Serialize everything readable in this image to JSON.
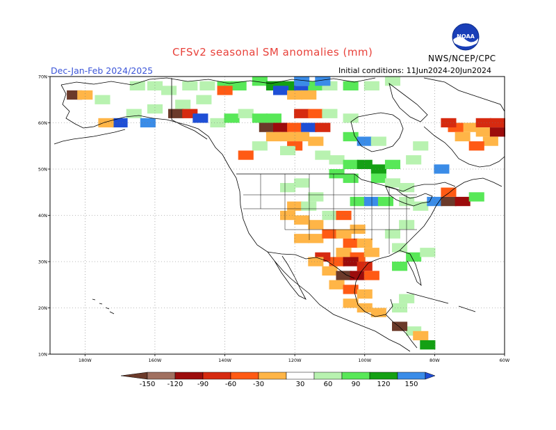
{
  "title": "CFSv2 seasonal SM anomalies (mm)",
  "season": "Dec-Jan-Feb 2024/2025",
  "initial_conditions": "Initial conditions: 11Jun2024-20Jun2024",
  "organization": "NWS/NCEP/CPC",
  "logo_text": "NOAA",
  "map": {
    "projection": "equirectangular",
    "lon_range": [
      -190,
      -60
    ],
    "lat_range": [
      10,
      70
    ],
    "lat_ticks": [
      {
        "value": 70,
        "label": "70N"
      },
      {
        "value": 60,
        "label": "60N"
      },
      {
        "value": 50,
        "label": "50N"
      },
      {
        "value": 40,
        "label": "40N"
      },
      {
        "value": 30,
        "label": "30N"
      },
      {
        "value": 20,
        "label": "20N"
      },
      {
        "value": 10,
        "label": "10N"
      }
    ],
    "lon_ticks": [
      {
        "value": -180,
        "label": "180W"
      },
      {
        "value": -160,
        "label": "160W"
      },
      {
        "value": -140,
        "label": "140W"
      },
      {
        "value": -120,
        "label": "120W"
      },
      {
        "value": -100,
        "label": "100W"
      },
      {
        "value": -80,
        "label": "80W"
      },
      {
        "value": -60,
        "label": "60W"
      }
    ],
    "grid": "dotted"
  },
  "colorbar": {
    "labels": [
      "-150",
      "-120",
      "-90",
      "-60",
      "-30",
      "30",
      "60",
      "90",
      "120",
      "150"
    ],
    "colors": [
      "#6b3a2a",
      "#a07060",
      "#9c0c0c",
      "#d62a10",
      "#ff5a14",
      "#ffb547",
      "#ffffff",
      "#b8f2b0",
      "#58e858",
      "#14a014",
      "#3a8ce8",
      "#1f4fd6"
    ]
  },
  "chart_data": {
    "type": "heatmap",
    "title": "CFSv2 seasonal SM anomalies (mm)",
    "units": "mm",
    "cell_size_deg": 2,
    "categories": {
      "lt_-150": "#6b3a2a",
      "-150_-120": "#a07060",
      "-120_-90": "#9c0c0c",
      "-90_-60": "#d62a10",
      "-60_-30": "#ff5a14",
      "-30_0": "#ffb547",
      "30_60": "#b8f2b0",
      "60_90": "#58e858",
      "90_120": "#14a014",
      "120_150": "#3a8ce8",
      "gt_150": "#1f4fd6"
    },
    "cells": [
      {
        "lon": -165,
        "lat": 68,
        "c": "30_60"
      },
      {
        "lon": -160,
        "lat": 68,
        "c": "30_60"
      },
      {
        "lon": -156,
        "lat": 67,
        "c": "30_60"
      },
      {
        "lon": -150,
        "lat": 68,
        "c": "30_60"
      },
      {
        "lon": -145,
        "lat": 68,
        "c": "30_60"
      },
      {
        "lon": -140,
        "lat": 68,
        "c": "60_90"
      },
      {
        "lon": -136,
        "lat": 68,
        "c": "60_90"
      },
      {
        "lon": -130,
        "lat": 69,
        "c": "60_90"
      },
      {
        "lon": -126,
        "lat": 68,
        "c": "90_120"
      },
      {
        "lon": -122,
        "lat": 68,
        "c": "90_120"
      },
      {
        "lon": -124,
        "lat": 67,
        "c": "gt_150"
      },
      {
        "lon": -118,
        "lat": 67,
        "c": "gt_150"
      },
      {
        "lon": -114,
        "lat": 68,
        "c": "60_90"
      },
      {
        "lon": -110,
        "lat": 68,
        "c": "30_60"
      },
      {
        "lon": -104,
        "lat": 68,
        "c": "60_90"
      },
      {
        "lon": -98,
        "lat": 68,
        "c": "30_60"
      },
      {
        "lon": -92,
        "lat": 69,
        "c": "30_60"
      },
      {
        "lon": -118,
        "lat": 69,
        "c": "120_150"
      },
      {
        "lon": -112,
        "lat": 69,
        "c": "120_150"
      },
      {
        "lon": -120,
        "lat": 66,
        "c": "-30_0"
      },
      {
        "lon": -116,
        "lat": 66,
        "c": "-30_0"
      },
      {
        "lon": -140,
        "lat": 67,
        "c": "-60_-30"
      },
      {
        "lon": -146,
        "lat": 65,
        "c": "30_60"
      },
      {
        "lon": -152,
        "lat": 64,
        "c": "30_60"
      },
      {
        "lon": -160,
        "lat": 63,
        "c": "30_60"
      },
      {
        "lon": -166,
        "lat": 62,
        "c": "30_60"
      },
      {
        "lon": -175,
        "lat": 65,
        "c": "30_60"
      },
      {
        "lon": -183,
        "lat": 66,
        "c": "lt_-150"
      },
      {
        "lon": -180,
        "lat": 66,
        "c": "-30_0"
      },
      {
        "lon": -154,
        "lat": 62,
        "c": "lt_-150"
      },
      {
        "lon": -150,
        "lat": 62,
        "c": "-90_-60"
      },
      {
        "lon": -147,
        "lat": 61,
        "c": "gt_150"
      },
      {
        "lon": -162,
        "lat": 60,
        "c": "120_150"
      },
      {
        "lon": -170,
        "lat": 60,
        "c": "gt_150"
      },
      {
        "lon": -174,
        "lat": 60,
        "c": "-30_0"
      },
      {
        "lon": -142,
        "lat": 60,
        "c": "30_60"
      },
      {
        "lon": -138,
        "lat": 61,
        "c": "60_90"
      },
      {
        "lon": -134,
        "lat": 62,
        "c": "30_60"
      },
      {
        "lon": -130,
        "lat": 61,
        "c": "60_90"
      },
      {
        "lon": -126,
        "lat": 61,
        "c": "60_90"
      },
      {
        "lon": -118,
        "lat": 62,
        "c": "-90_-60"
      },
      {
        "lon": -114,
        "lat": 62,
        "c": "-60_-30"
      },
      {
        "lon": -110,
        "lat": 62,
        "c": "30_60"
      },
      {
        "lon": -104,
        "lat": 61,
        "c": "30_60"
      },
      {
        "lon": -128,
        "lat": 59,
        "c": "lt_-150"
      },
      {
        "lon": -124,
        "lat": 59,
        "c": "-120_-90"
      },
      {
        "lon": -120,
        "lat": 59,
        "c": "-60_-30"
      },
      {
        "lon": -116,
        "lat": 59,
        "c": "gt_150"
      },
      {
        "lon": -112,
        "lat": 59,
        "c": "-90_-60"
      },
      {
        "lon": -122,
        "lat": 57,
        "c": "-30_0"
      },
      {
        "lon": -118,
        "lat": 57,
        "c": "-30_0"
      },
      {
        "lon": -114,
        "lat": 56,
        "c": "-30_0"
      },
      {
        "lon": -120,
        "lat": 55,
        "c": "-60_-30"
      },
      {
        "lon": -126,
        "lat": 57,
        "c": "-30_0"
      },
      {
        "lon": -130,
        "lat": 55,
        "c": "30_60"
      },
      {
        "lon": -134,
        "lat": 53,
        "c": "-60_-30"
      },
      {
        "lon": -122,
        "lat": 54,
        "c": "30_60"
      },
      {
        "lon": -104,
        "lat": 57,
        "c": "60_90"
      },
      {
        "lon": -100,
        "lat": 56,
        "c": "120_150"
      },
      {
        "lon": -96,
        "lat": 56,
        "c": "30_60"
      },
      {
        "lon": -112,
        "lat": 53,
        "c": "30_60"
      },
      {
        "lon": -108,
        "lat": 52,
        "c": "30_60"
      },
      {
        "lon": -104,
        "lat": 51,
        "c": "60_90"
      },
      {
        "lon": -100,
        "lat": 51,
        "c": "90_120"
      },
      {
        "lon": -96,
        "lat": 50,
        "c": "90_120"
      },
      {
        "lon": -92,
        "lat": 51,
        "c": "60_90"
      },
      {
        "lon": -108,
        "lat": 49,
        "c": "60_90"
      },
      {
        "lon": -104,
        "lat": 48,
        "c": "60_90"
      },
      {
        "lon": -96,
        "lat": 48,
        "c": "60_90"
      },
      {
        "lon": -92,
        "lat": 47,
        "c": "30_60"
      },
      {
        "lon": -88,
        "lat": 46,
        "c": "30_60"
      },
      {
        "lon": -86,
        "lat": 52,
        "c": "30_60"
      },
      {
        "lon": -84,
        "lat": 55,
        "c": "30_60"
      },
      {
        "lon": -78,
        "lat": 50,
        "c": "120_150"
      },
      {
        "lon": -70,
        "lat": 59,
        "c": "-30_0"
      },
      {
        "lon": -66,
        "lat": 60,
        "c": "-90_-60"
      },
      {
        "lon": -62,
        "lat": 60,
        "c": "-90_-60"
      },
      {
        "lon": -74,
        "lat": 59,
        "c": "-60_-30"
      },
      {
        "lon": -72,
        "lat": 57,
        "c": "-30_0"
      },
      {
        "lon": -66,
        "lat": 58,
        "c": "-30_0"
      },
      {
        "lon": -62,
        "lat": 58,
        "c": "-120_-90"
      },
      {
        "lon": -64,
        "lat": 56,
        "c": "-30_0"
      },
      {
        "lon": -68,
        "lat": 55,
        "c": "-60_-30"
      },
      {
        "lon": -76,
        "lat": 60,
        "c": "-90_-60"
      },
      {
        "lon": -122,
        "lat": 46,
        "c": "30_60"
      },
      {
        "lon": -118,
        "lat": 47,
        "c": "30_60"
      },
      {
        "lon": -114,
        "lat": 44,
        "c": "30_60"
      },
      {
        "lon": -120,
        "lat": 42,
        "c": "-30_0"
      },
      {
        "lon": -116,
        "lat": 42,
        "c": "30_60"
      },
      {
        "lon": -122,
        "lat": 40,
        "c": "-30_0"
      },
      {
        "lon": -118,
        "lat": 39,
        "c": "-30_0"
      },
      {
        "lon": -114,
        "lat": 38,
        "c": "-30_0"
      },
      {
        "lon": -110,
        "lat": 40,
        "c": "30_60"
      },
      {
        "lon": -106,
        "lat": 40,
        "c": "-60_-30"
      },
      {
        "lon": -102,
        "lat": 43,
        "c": "60_90"
      },
      {
        "lon": -98,
        "lat": 43,
        "c": "120_150"
      },
      {
        "lon": -94,
        "lat": 43,
        "c": "60_90"
      },
      {
        "lon": -88,
        "lat": 43,
        "c": "30_60"
      },
      {
        "lon": -84,
        "lat": 42,
        "c": "30_60"
      },
      {
        "lon": -80,
        "lat": 43,
        "c": "120_150"
      },
      {
        "lon": -76,
        "lat": 43,
        "c": "lt_-150"
      },
      {
        "lon": -72,
        "lat": 43,
        "c": "-120_-90"
      },
      {
        "lon": -68,
        "lat": 44,
        "c": "60_90"
      },
      {
        "lon": -76,
        "lat": 45,
        "c": "-60_-30"
      },
      {
        "lon": -118,
        "lat": 35,
        "c": "-30_0"
      },
      {
        "lon": -114,
        "lat": 35,
        "c": "-30_0"
      },
      {
        "lon": -110,
        "lat": 36,
        "c": "-60_-30"
      },
      {
        "lon": -106,
        "lat": 36,
        "c": "-30_0"
      },
      {
        "lon": -102,
        "lat": 37,
        "c": "-30_0"
      },
      {
        "lon": -104,
        "lat": 34,
        "c": "-60_-30"
      },
      {
        "lon": -100,
        "lat": 34,
        "c": "-30_0"
      },
      {
        "lon": -106,
        "lat": 32,
        "c": "-30_0"
      },
      {
        "lon": -102,
        "lat": 31,
        "c": "-60_-30"
      },
      {
        "lon": -98,
        "lat": 32,
        "c": "-30_0"
      },
      {
        "lon": -108,
        "lat": 30,
        "c": "-60_-30"
      },
      {
        "lon": -104,
        "lat": 30,
        "c": "-120_-90"
      },
      {
        "lon": -100,
        "lat": 29,
        "c": "-90_-60"
      },
      {
        "lon": -110,
        "lat": 28,
        "c": "-30_0"
      },
      {
        "lon": -106,
        "lat": 27,
        "c": "lt_-150"
      },
      {
        "lon": -102,
        "lat": 27,
        "c": "-120_-90"
      },
      {
        "lon": -98,
        "lat": 27,
        "c": "-60_-30"
      },
      {
        "lon": -108,
        "lat": 25,
        "c": "-30_0"
      },
      {
        "lon": -104,
        "lat": 24,
        "c": "-60_-30"
      },
      {
        "lon": -100,
        "lat": 23,
        "c": "-30_0"
      },
      {
        "lon": -104,
        "lat": 21,
        "c": "-30_0"
      },
      {
        "lon": -100,
        "lat": 20,
        "c": "-30_0"
      },
      {
        "lon": -96,
        "lat": 19,
        "c": "-30_0"
      },
      {
        "lon": -112,
        "lat": 31,
        "c": "-90_-60"
      },
      {
        "lon": -114,
        "lat": 30,
        "c": "-30_0"
      },
      {
        "lon": -90,
        "lat": 33,
        "c": "30_60"
      },
      {
        "lon": -86,
        "lat": 31,
        "c": "60_90"
      },
      {
        "lon": -82,
        "lat": 32,
        "c": "30_60"
      },
      {
        "lon": -90,
        "lat": 29,
        "c": "60_90"
      },
      {
        "lon": -92,
        "lat": 36,
        "c": "30_60"
      },
      {
        "lon": -88,
        "lat": 38,
        "c": "30_60"
      },
      {
        "lon": -86,
        "lat": 15,
        "c": "30_60"
      },
      {
        "lon": -84,
        "lat": 14,
        "c": "-30_0"
      },
      {
        "lon": -90,
        "lat": 16,
        "c": "lt_-150"
      },
      {
        "lon": -82,
        "lat": 12,
        "c": "90_120"
      },
      {
        "lon": -90,
        "lat": 20,
        "c": "30_60"
      },
      {
        "lon": -88,
        "lat": 22,
        "c": "30_60"
      }
    ]
  }
}
